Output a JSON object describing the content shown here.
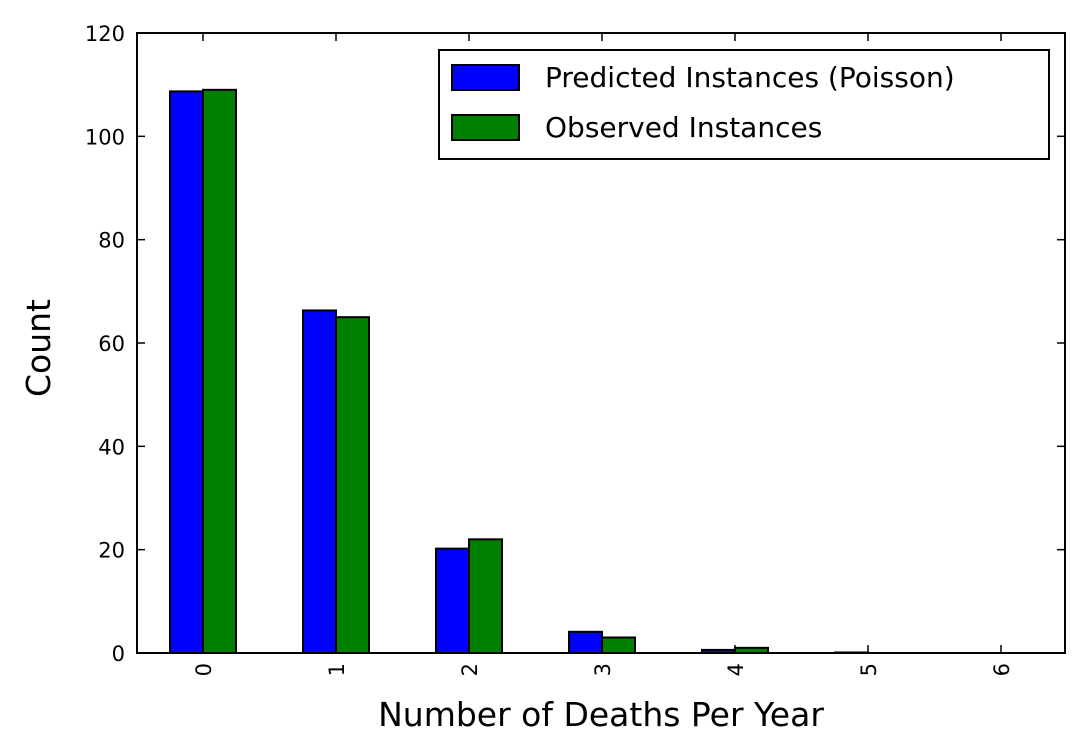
{
  "chart_data": {
    "type": "bar",
    "title": "",
    "xlabel": "Number of Deaths Per Year",
    "ylabel": "Count",
    "categories": [
      "0",
      "1",
      "2",
      "3",
      "4",
      "5",
      "6"
    ],
    "ylim": [
      0,
      120
    ],
    "yticks": [
      "0",
      "20",
      "40",
      "60",
      "80",
      "100",
      "120"
    ],
    "grid": false,
    "legend_position": "top-right",
    "series": [
      {
        "name": "Predicted Instances (Poisson)",
        "color": "#0000ff",
        "values": [
          108.7,
          66.3,
          20.2,
          4.1,
          0.6,
          0.1,
          0.0
        ]
      },
      {
        "name": "Observed Instances",
        "color": "#008000",
        "values": [
          109,
          65,
          22,
          3,
          1,
          0,
          0
        ]
      }
    ]
  }
}
